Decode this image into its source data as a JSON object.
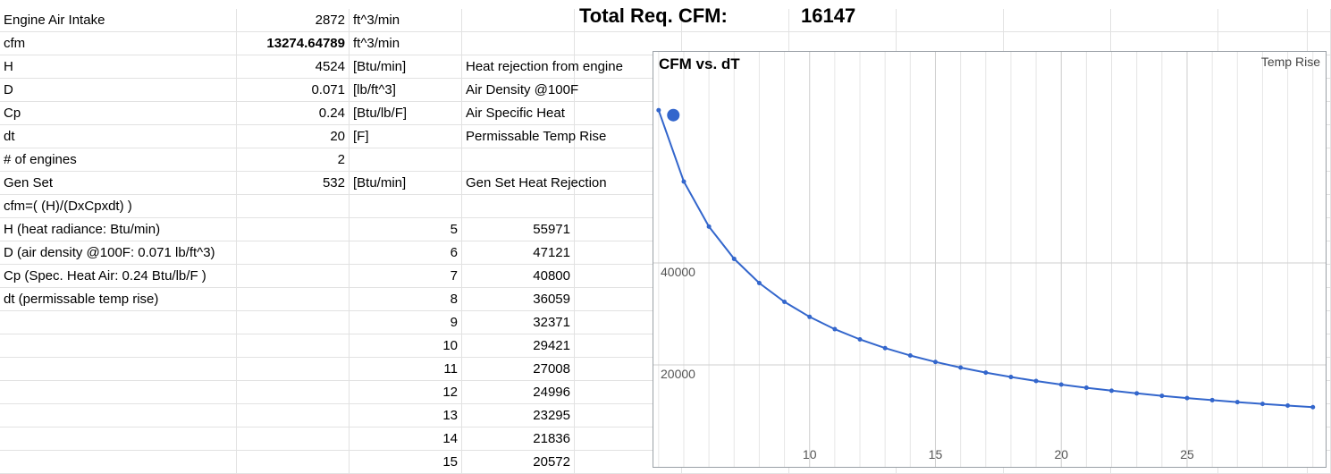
{
  "sheet": {
    "rows": [
      {
        "a": "Engine Air Intake",
        "b": "2872",
        "c": "ft^3/min",
        "d": ""
      },
      {
        "a": "cfm",
        "b": "13274.64789",
        "c": "ft^3/min",
        "d": ""
      },
      {
        "a": "H",
        "b": "4524",
        "c": "[Btu/min]",
        "d": "Heat rejection from engine"
      },
      {
        "a": "D",
        "b": "0.071",
        "c": "[lb/ft^3]",
        "d": "Air Density @100F"
      },
      {
        "a": "Cp",
        "b": "0.24",
        "c": "[Btu/lb/F]",
        "d": "Air Specific Heat"
      },
      {
        "a": "dt",
        "b": "20",
        "c": "[F]",
        "d": "Permissable Temp Rise"
      },
      {
        "a": "# of engines",
        "b": "2",
        "c": "",
        "d": ""
      },
      {
        "a": "Gen Set",
        "b": "532",
        "c": "[Btu/min]",
        "d": "Gen Set Heat Rejection"
      },
      {
        "a": "cfm=( (H)/(DxCpxdt) )",
        "b": "",
        "c": "",
        "d": ""
      },
      {
        "a": "H (heat radiance: Btu/min)",
        "b": "",
        "c": "5",
        "d": "55971"
      },
      {
        "a": "D (air density @100F: 0.071 lb/ft^3)",
        "b": "",
        "c": "6",
        "d": "47121"
      },
      {
        "a": "Cp (Spec. Heat Air: 0.24 Btu/lb/F )",
        "b": "",
        "c": "7",
        "d": "40800"
      },
      {
        "a": "dt (permissable temp rise)",
        "b": "",
        "c": "8",
        "d": "36059"
      },
      {
        "a": "",
        "b": "",
        "c": "9",
        "d": "32371"
      },
      {
        "a": "",
        "b": "",
        "c": "10",
        "d": "29421"
      },
      {
        "a": "",
        "b": "",
        "c": "11",
        "d": "27008"
      },
      {
        "a": "",
        "b": "",
        "c": "12",
        "d": "24996"
      },
      {
        "a": "",
        "b": "",
        "c": "13",
        "d": "23295"
      },
      {
        "a": "",
        "b": "",
        "c": "14",
        "d": "21836"
      },
      {
        "a": "",
        "b": "",
        "c": "15",
        "d": "20572"
      }
    ]
  },
  "total": {
    "label": "Total Req. CFM:",
    "value": "16147"
  },
  "chart_data": {
    "type": "line",
    "title": "CFM vs. dT",
    "series": [
      {
        "name": "Temp Rise",
        "color": "#3366cc",
        "x": [
          4,
          5,
          6,
          7,
          8,
          9,
          10,
          11,
          12,
          13,
          14,
          15,
          16,
          17,
          18,
          19,
          20,
          21,
          22,
          23,
          24,
          25,
          26,
          27,
          28,
          29,
          30
        ],
        "y": [
          69964,
          55971,
          47121,
          40800,
          36059,
          32371,
          29421,
          27008,
          24996,
          23295,
          21836,
          20572,
          19466,
          18491,
          17623,
          16847,
          16148,
          15516,
          14941,
          14417,
          13935,
          13492,
          13083,
          12703,
          12351,
          12023,
          11716
        ]
      }
    ],
    "highlight_point": {
      "x": 4.3,
      "y": 69000
    },
    "xlim": [
      3.9,
      30.4
    ],
    "ylim": [
      0,
      80000
    ],
    "x_ticks": [
      10,
      15,
      20,
      25
    ],
    "y_ticks": [
      20000,
      40000
    ],
    "grid": true,
    "legend": "top-right"
  }
}
